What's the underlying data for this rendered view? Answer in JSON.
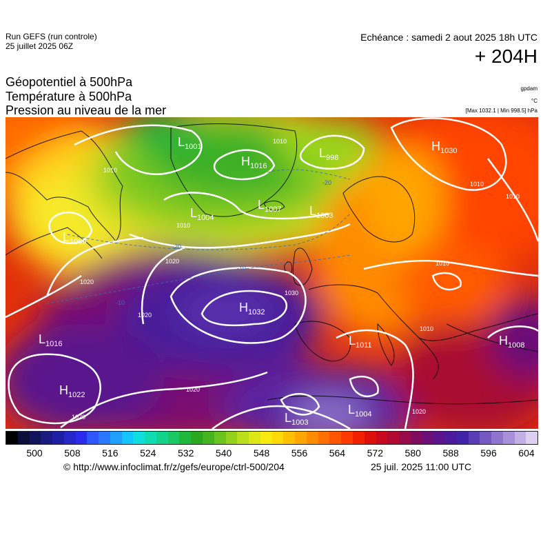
{
  "header": {
    "run": "Run GEFS (run controle)",
    "run_date": "25 juillet 2025 06Z",
    "echeance": "Echéance : samedi 2 aout 2025 18h UTC",
    "lead_time": "+ 204H"
  },
  "fields": {
    "geopotential": "Géopotentiel à 500hPa",
    "temperature": "Température à 500hPa",
    "pressure": "Pression au niveau de la mer"
  },
  "units": {
    "gpdam": "gpdam",
    "celsius": "°C",
    "maxmin": "[Max 1032.1 | Min 998.5] hPa"
  },
  "pressure_centers": [
    {
      "type": "L",
      "value": "1001"
    },
    {
      "type": "H",
      "value": "1016"
    },
    {
      "type": "L",
      "value": "998"
    },
    {
      "type": "H",
      "value": "1030"
    },
    {
      "type": "L",
      "value": "1009"
    },
    {
      "type": "L",
      "value": "1004"
    },
    {
      "type": "L",
      "value": "1007"
    },
    {
      "type": "L",
      "value": "1003"
    },
    {
      "type": "H",
      "value": "1032"
    },
    {
      "type": "L",
      "value": "1016"
    },
    {
      "type": "L",
      "value": "1011"
    },
    {
      "type": "H",
      "value": "1008"
    },
    {
      "type": "H",
      "value": "1022"
    },
    {
      "type": "L",
      "value": "1003"
    },
    {
      "type": "L",
      "value": "1004"
    }
  ],
  "isobar_labels": [
    "1010",
    "1010",
    "1010",
    "1020",
    "1020",
    "1020",
    "1020",
    "1020",
    "1010",
    "1030",
    "1010",
    "1010",
    "1010",
    "1020"
  ],
  "temp_labels": [
    "-20",
    "-20",
    "-10",
    "-10"
  ],
  "colorbar": {
    "ticks": [
      "500",
      "508",
      "516",
      "524",
      "532",
      "540",
      "548",
      "556",
      "564",
      "572",
      "580",
      "588",
      "596",
      "604"
    ],
    "colors": [
      "#000000",
      "#0d0d3a",
      "#13125c",
      "#1a1a80",
      "#1f1fa6",
      "#2626c9",
      "#2b2bee",
      "#2f55ff",
      "#2a78ff",
      "#1fa0ff",
      "#14c4ff",
      "#10dede",
      "#10dcb4",
      "#12d28c",
      "#1ac864",
      "#20b83c",
      "#2aa820",
      "#46b41e",
      "#6ac41e",
      "#92d21c",
      "#bade1a",
      "#dfe616",
      "#f8ea10",
      "#ffd808",
      "#ffc004",
      "#ffa600",
      "#ff8c00",
      "#ff7000",
      "#ff5400",
      "#ff3a00",
      "#f02000",
      "#dc1008",
      "#c8081c",
      "#b00a30",
      "#980a48",
      "#800c60",
      "#6a1078",
      "#5a148c",
      "#4c1a9c",
      "#4024a8",
      "#5a3cb4",
      "#7458c0",
      "#8e74cc",
      "#a890d8",
      "#c2b0e4",
      "#dcd0f0"
    ]
  },
  "footer": {
    "url": "© http://www.infoclimat.fr/z/gefs/europe/ctrl-500/204",
    "timestamp": "25 juil. 2025 11:00 UTC"
  }
}
